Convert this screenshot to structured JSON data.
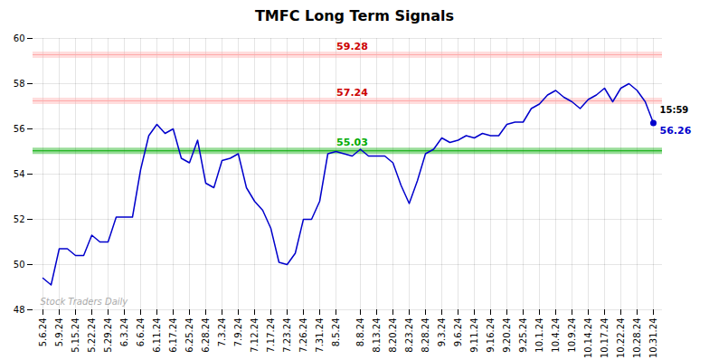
{
  "chart_data": {
    "type": "line",
    "title": "TMFC Long Term Signals",
    "categories": [
      "5.6.24",
      null,
      "5.9.24",
      null,
      "5.15.24",
      null,
      "5.22.24",
      null,
      "5.29.24",
      null,
      "6.3.24",
      null,
      "6.6.24",
      null,
      "6.11.24",
      null,
      "6.17.24",
      null,
      "6.25.24",
      null,
      "6.28.24",
      null,
      "7.3.24",
      null,
      "7.9.24",
      null,
      "7.12.24",
      null,
      "7.17.24",
      null,
      "7.23.24",
      null,
      "7.26.24",
      null,
      "7.31.24",
      null,
      "8.5.24",
      null,
      null,
      "8.8.24",
      null,
      "8.13.24",
      null,
      "8.20.24",
      null,
      "8.23.24",
      null,
      "8.28.24",
      null,
      "9.3.24",
      null,
      "9.6.24",
      null,
      "9.11.24",
      null,
      "9.16.24",
      null,
      "9.20.24",
      null,
      "9.25.24",
      null,
      "10.1.24",
      null,
      "10.4.24",
      null,
      "10.9.24",
      null,
      "10.14.24",
      null,
      "10.17.24",
      null,
      "10.22.24",
      null,
      "10.28.24",
      null,
      "10.31.24"
    ],
    "values": [
      49.4,
      49.1,
      50.7,
      50.7,
      50.4,
      50.4,
      51.3,
      51.0,
      51.0,
      52.1,
      52.1,
      52.1,
      54.2,
      55.7,
      56.2,
      55.8,
      56.0,
      54.7,
      54.5,
      55.5,
      53.6,
      53.4,
      54.6,
      54.7,
      54.9,
      53.4,
      52.8,
      52.4,
      51.6,
      50.1,
      50.0,
      50.5,
      52.0,
      52.0,
      52.8,
      54.9,
      55.0,
      54.9,
      54.8,
      55.1,
      54.8,
      54.8,
      54.8,
      54.5,
      53.5,
      52.7,
      53.7,
      54.9,
      55.1,
      55.6,
      55.4,
      55.5,
      55.7,
      55.6,
      55.8,
      55.7,
      55.7,
      56.2,
      56.3,
      56.3,
      56.9,
      57.1,
      57.5,
      57.7,
      57.4,
      57.2,
      56.9,
      57.3,
      57.5,
      57.8,
      57.2,
      57.8,
      58.0,
      57.7,
      57.2,
      56.26
    ],
    "color": "#0000cc",
    "ylim": [
      48,
      60
    ],
    "yticks": [
      48,
      50,
      52,
      54,
      56,
      58,
      60
    ],
    "grid": true,
    "reference_lines": [
      {
        "value": 59.28,
        "label": "59.28",
        "color": "#cc0000",
        "line_color": "#ffaaaa"
      },
      {
        "value": 57.24,
        "label": "57.24",
        "color": "#cc0000",
        "line_color": "#ffaaaa"
      },
      {
        "value": 55.03,
        "label": "55.03",
        "color": "#00aa00",
        "line_color": "#00aa00"
      }
    ],
    "last_price": 56.26,
    "last_time": "15:59",
    "watermark": "Stock Traders Daily"
  }
}
